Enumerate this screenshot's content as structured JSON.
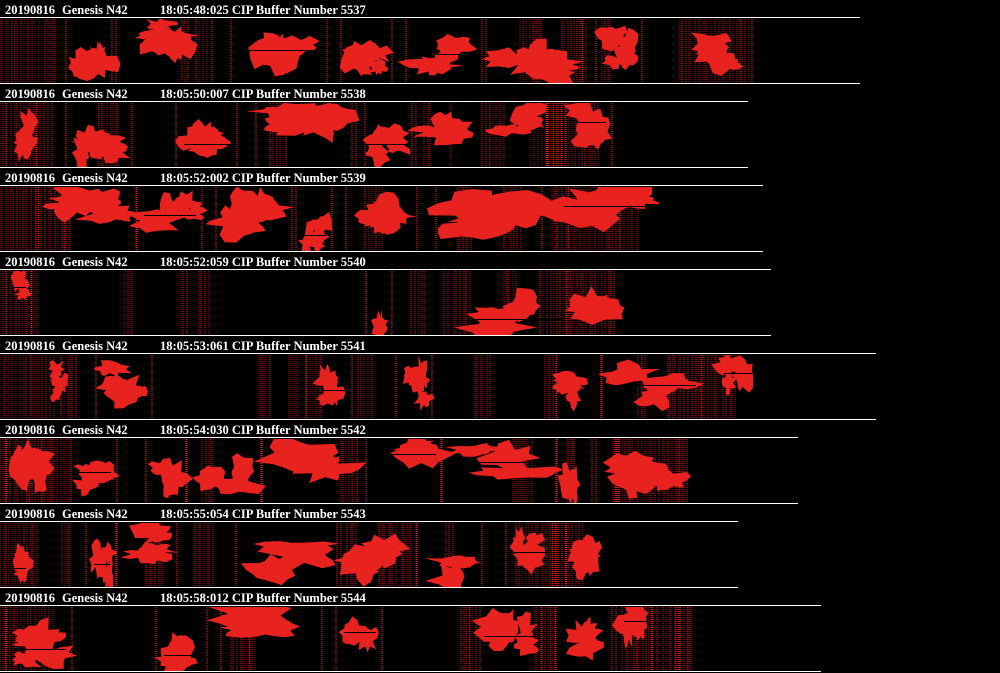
{
  "theme": {
    "background": "#000000",
    "text": "#ffffff",
    "particle": "#e8231f",
    "rule": "#ffffff"
  },
  "buffers": [
    {
      "date": "20190816",
      "probe": "Genesis N42",
      "time": "18:05:48:025",
      "label": "CIP Buffer Number",
      "number": "5537"
    },
    {
      "date": "20190816",
      "probe": "Genesis N42",
      "time": "18:05:50:007",
      "label": "CIP Buffer Number",
      "number": "5538"
    },
    {
      "date": "20190816",
      "probe": "Genesis N42",
      "time": "18:05:52:002",
      "label": "CIP Buffer Number",
      "number": "5539"
    },
    {
      "date": "20190816",
      "probe": "Genesis N42",
      "time": "18:05:52:059",
      "label": "CIP Buffer Number",
      "number": "5540"
    },
    {
      "date": "20190816",
      "probe": "Genesis N42",
      "time": "18:05:53:061",
      "label": "CIP Buffer Number",
      "number": "5541"
    },
    {
      "date": "20190816",
      "probe": "Genesis N42",
      "time": "18:05:54:030",
      "label": "CIP Buffer Number",
      "number": "5542"
    },
    {
      "date": "20190816",
      "probe": "Genesis N42",
      "time": "18:05:55:054",
      "label": "CIP Buffer Number",
      "number": "5543"
    },
    {
      "date": "20190816",
      "probe": "Genesis N42",
      "time": "18:05:58:012",
      "label": "CIP Buffer Number",
      "number": "5544"
    }
  ]
}
